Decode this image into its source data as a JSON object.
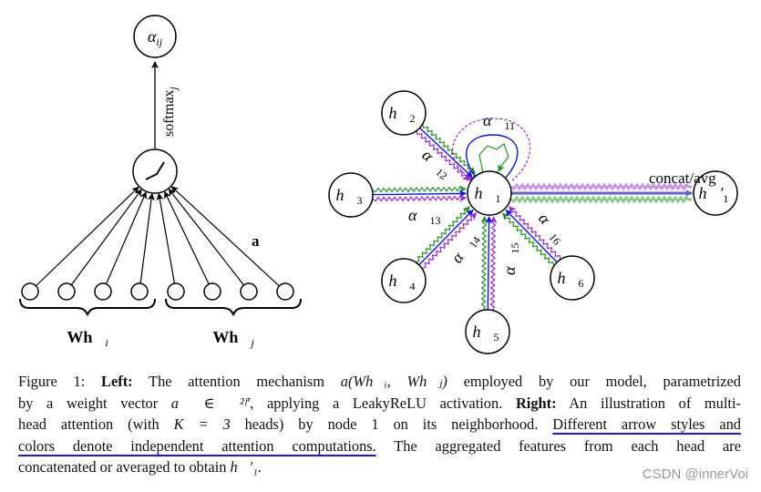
{
  "colors": {
    "green": "#1a9a1a",
    "blue": "#1010ff",
    "purple": "#a020e0",
    "output": "#3040c0",
    "stroke": "#000000"
  },
  "left": {
    "output_label": "α",
    "output_sub": "ij",
    "softmax_label": "softmax",
    "softmax_sub": "j",
    "weight_label": "a⃗",
    "group_i_label": "Wh⃗",
    "group_i_sub": "i",
    "group_j_label": "Wh⃗",
    "group_j_sub": "j",
    "activation_icon": "leaky-relu-icon"
  },
  "right": {
    "center": {
      "label": "h⃗",
      "sub": "1"
    },
    "neighbors": [
      {
        "label": "h⃗",
        "sub": "2"
      },
      {
        "label": "h⃗",
        "sub": "3"
      },
      {
        "label": "h⃗",
        "sub": "4"
      },
      {
        "label": "h⃗",
        "sub": "5"
      },
      {
        "label": "h⃗",
        "sub": "6"
      }
    ],
    "output": {
      "label": "h⃗′",
      "sub": "1"
    },
    "output_edge_label": "concat/avg",
    "attention_labels": [
      {
        "label": "α⃗",
        "sub": "11"
      },
      {
        "label": "α⃗",
        "sub": "12"
      },
      {
        "label": "α⃗",
        "sub": "13"
      },
      {
        "label": "α⃗",
        "sub": "14"
      },
      {
        "label": "α⃗",
        "sub": "15"
      },
      {
        "label": "α⃗",
        "sub": "16"
      }
    ]
  },
  "caption": {
    "l1": [
      "Figure 1: ",
      "Left:",
      " The attention mechanism ",
      "a(Wh⃗ᵢ, Wh⃗ⱼ)",
      " employed by our model, parametrized"
    ],
    "l2": [
      "by a weight vector ",
      "a⃗ ∈ ℝ²ᶠ′",
      ", applying a LeakyReLU activation. ",
      "Right:",
      " An illustration of multi-"
    ],
    "l3": [
      "head attention (with ",
      "K = 3",
      " heads) by node 1 on its neighborhood. ",
      "Different arrow styles and"
    ],
    "l4": [
      "colors denote independent attention computations.",
      " The aggregated features from each head are"
    ],
    "l5": [
      "concatenated or averaged to obtain ",
      "h⃗′₁",
      "."
    ]
  },
  "watermark": "CSDN @innerVoi"
}
